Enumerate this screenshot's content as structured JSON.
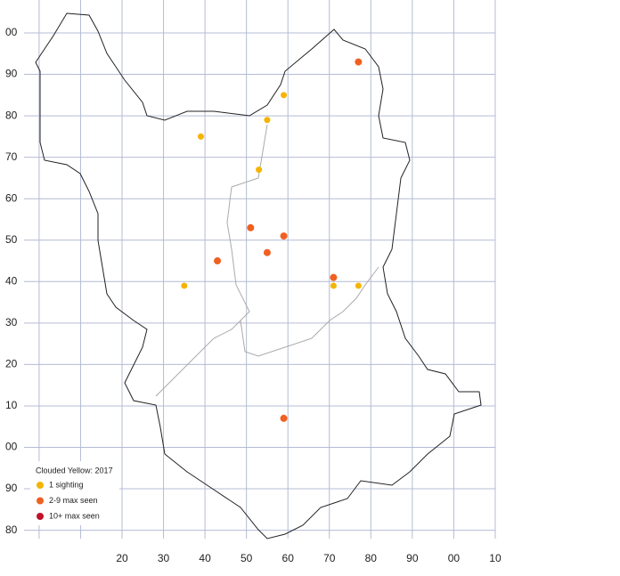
{
  "grid": {
    "x_labels": [
      "20",
      "30",
      "40",
      "50",
      "60",
      "70",
      "80",
      "90",
      "00",
      "10"
    ],
    "y_labels": [
      "00",
      "90",
      "80",
      "70",
      "60",
      "50",
      "40",
      "30",
      "20",
      "10",
      "00",
      "90",
      "80"
    ]
  },
  "legend": {
    "title": "Clouded Yellow:  2017",
    "items": [
      {
        "label": "1 sighting",
        "color": "#f5b400"
      },
      {
        "label": "2-9 max seen",
        "color": "#f06020"
      },
      {
        "label": "10+ max seen",
        "color": "#c0102a"
      }
    ]
  },
  "points": [
    {
      "e": 39,
      "n": 75,
      "category": 0
    },
    {
      "e": 59,
      "n": 85,
      "category": 0
    },
    {
      "e": 55,
      "n": 79,
      "category": 0
    },
    {
      "e": 53,
      "n": 67,
      "category": 0
    },
    {
      "e": 35,
      "n": 39,
      "category": 0
    },
    {
      "e": 71,
      "n": 39,
      "category": 0
    },
    {
      "e": 77,
      "n": 39,
      "category": 0
    },
    {
      "e": 77,
      "n": 93,
      "category": 1
    },
    {
      "e": 51,
      "n": 53,
      "category": 1
    },
    {
      "e": 59,
      "n": 51,
      "category": 1
    },
    {
      "e": 55,
      "n": 47,
      "category": 1
    },
    {
      "e": 43,
      "n": 45,
      "category": 1
    },
    {
      "e": 71,
      "n": 41,
      "category": 1
    },
    {
      "e": 59,
      "n": 7,
      "category": 1
    }
  ]
}
